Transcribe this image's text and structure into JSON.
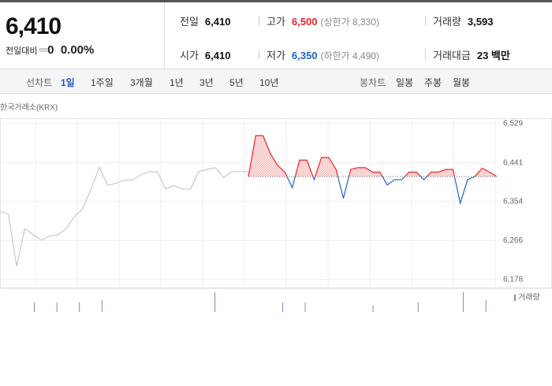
{
  "header": {
    "price": "6,410",
    "change_label": "전일대비",
    "change": "0",
    "rate": "0.00%"
  },
  "stats": [
    [
      {
        "label": "전일",
        "value": "6,410"
      },
      {
        "label": "고가",
        "value": "6,500",
        "note": "(상한가 8,330)"
      },
      {
        "label": "거래량",
        "value": "3,593"
      }
    ],
    [
      {
        "label": "시가",
        "value": "6,410"
      },
      {
        "label": "저가",
        "value": "6,350",
        "note": "(하한가 4,490)"
      },
      {
        "label": "거래대금",
        "value": "23 백만"
      }
    ]
  ],
  "tabs": {
    "line_label": "선차트",
    "line": [
      "1일",
      "1주일",
      "3개월",
      "1년",
      "3년",
      "5년",
      "10년"
    ],
    "candle_label": "봉차트",
    "candle": [
      "일봉",
      "주봉",
      "월봉"
    ]
  },
  "chart_data": {
    "type": "line",
    "source": "한국거래소(KRX)",
    "ylim": [
      6178,
      6529
    ],
    "yticks": [
      {
        "value": 6529,
        "label": "6,529"
      },
      {
        "value": 6441,
        "label": "6,441"
      },
      {
        "value": 6354,
        "label": "6,354"
      },
      {
        "value": 6266,
        "label": "6,266"
      },
      {
        "value": 6178,
        "label": "6,178"
      }
    ],
    "base": 6410,
    "up_color": "#e8242c",
    "down_color": "#1f63c6",
    "series": [
      {
        "color": "#c8c8c8",
        "values": [
          6332,
          6325,
          6208,
          6293,
          6279,
          6267,
          6276,
          6279,
          6293,
          6320,
          6338,
          6382,
          6431,
          6390,
          6395,
          6402,
          6402,
          6414,
          6421,
          6421,
          6382,
          6390,
          6382,
          6382,
          6421,
          6426,
          6430,
          6408,
          6421,
          6421,
          6421
        ]
      },
      {
        "color": "#e8242c",
        "values": [
          6410,
          6502,
          6502,
          6462,
          6435,
          6420,
          6385,
          6447,
          6447,
          6403,
          6453,
          6453,
          6426,
          6361,
          6426,
          6430,
          6430,
          6420,
          6420,
          6391,
          6403,
          6403,
          6420,
          6420,
          6403,
          6420,
          6420,
          6426,
          6426,
          6350,
          6403,
          6410,
          6429,
          6420,
          6410
        ]
      }
    ],
    "volume": {
      "label": "거래량",
      "color": "#8a80b8",
      "values": [
        0,
        12,
        12,
        12,
        15,
        0,
        0,
        0,
        0,
        25,
        0,
        0,
        12,
        12,
        0,
        0,
        8,
        0,
        12,
        0,
        25,
        15
      ]
    }
  }
}
